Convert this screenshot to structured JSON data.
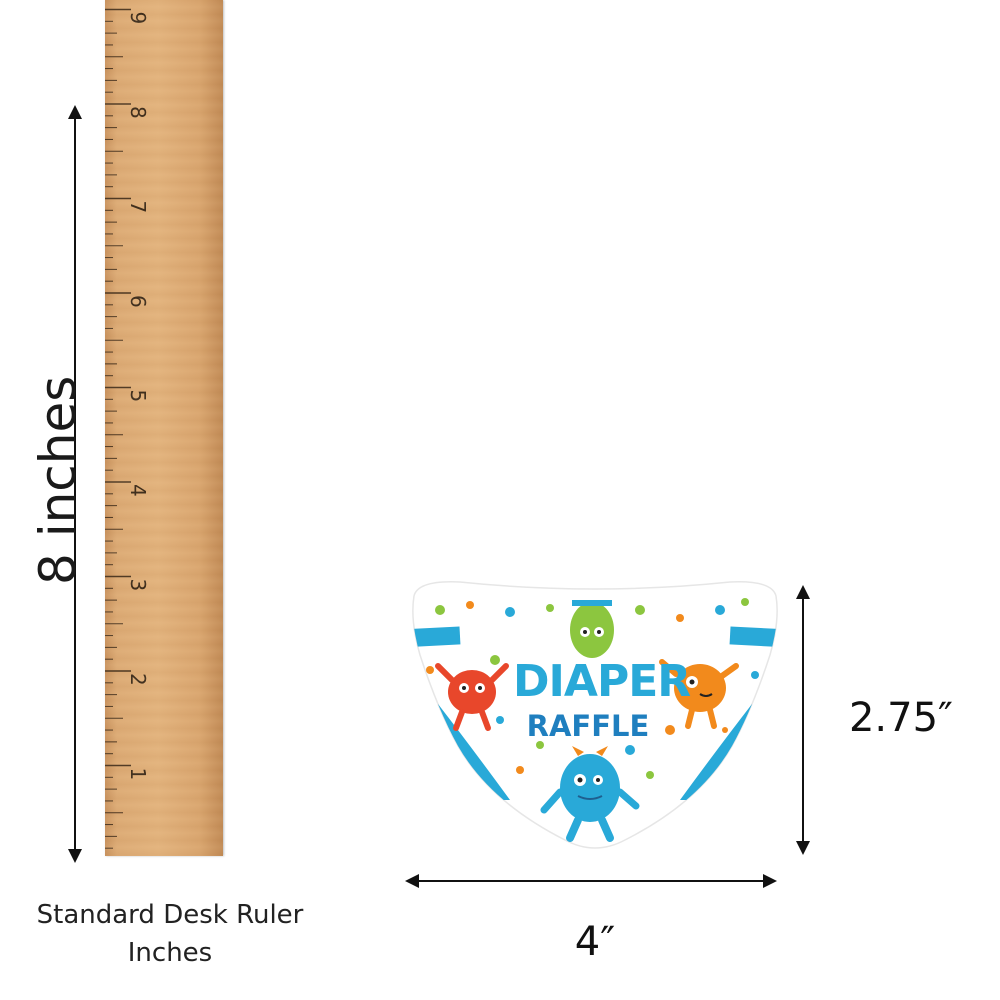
{
  "ruler": {
    "numbers": [
      "9",
      "8",
      "7",
      "6",
      "5",
      "4",
      "3",
      "2",
      "1"
    ]
  },
  "dimensions": {
    "height": "8 inches",
    "width": "4″",
    "depth": "2.75″"
  },
  "caption": {
    "line1": "Standard Desk Ruler",
    "line2": "Inches"
  },
  "card": {
    "title_line1": "DIAPER",
    "title_line2": "RAFFLE"
  },
  "colors": {
    "blue": "#29a9d8",
    "dark_blue": "#1f7fbf",
    "orange": "#f28a1c",
    "green": "#8cc63f",
    "red": "#e8472b"
  }
}
